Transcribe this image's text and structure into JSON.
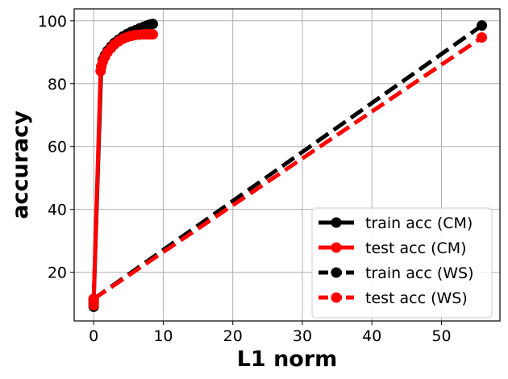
{
  "chart_data": {
    "type": "line",
    "title": "",
    "xlabel": "L1 norm",
    "ylabel": "accuracy",
    "xlim": [
      -2.8,
      58.4
    ],
    "ylim": [
      4.5,
      103.8
    ],
    "xticks": [
      0,
      10,
      20,
      30,
      40,
      50
    ],
    "yticks": [
      20,
      40,
      60,
      80,
      100
    ],
    "grid": true,
    "legend_position": "lower-right",
    "series": [
      {
        "name": "train acc (CM)",
        "color": "#000000",
        "linestyle": "solid",
        "x": [
          0.0,
          0.0,
          0.0,
          1.1,
          1.3,
          1.6,
          2.0,
          2.5,
          3.0,
          3.6,
          4.2,
          4.8,
          5.4,
          6.0,
          6.6,
          7.2,
          7.7,
          8.1,
          8.5
        ],
        "y": [
          9.0,
          10.0,
          11.0,
          85.5,
          87.5,
          89.0,
          90.5,
          91.8,
          93.0,
          94.0,
          95.0,
          95.8,
          96.5,
          97.0,
          97.6,
          98.1,
          98.5,
          98.8,
          99.0
        ]
      },
      {
        "name": "test acc (CM)",
        "color": "#ff0000",
        "linestyle": "solid",
        "x": [
          0.0,
          0.0,
          0.0,
          1.0,
          1.1,
          1.3,
          1.6,
          2.0,
          2.5,
          3.0,
          3.6,
          4.2,
          4.8,
          5.4,
          6.0,
          6.6,
          7.2,
          7.7,
          8.1,
          8.5
        ],
        "y": [
          9.5,
          10.5,
          11.5,
          84.0,
          85.5,
          87.0,
          88.5,
          90.0,
          91.3,
          92.5,
          93.5,
          94.3,
          94.8,
          95.2,
          95.5,
          95.6,
          95.7,
          95.7,
          95.7,
          95.7
        ]
      },
      {
        "name": "train acc (WS)",
        "color": "#000000",
        "linestyle": "dashed",
        "x": [
          0.0,
          55.8
        ],
        "y": [
          11.5,
          98.5
        ]
      },
      {
        "name": "test acc (WS)",
        "color": "#ff0000",
        "linestyle": "dashed",
        "x": [
          0.0,
          55.8
        ],
        "y": [
          11.5,
          94.7
        ]
      }
    ]
  }
}
